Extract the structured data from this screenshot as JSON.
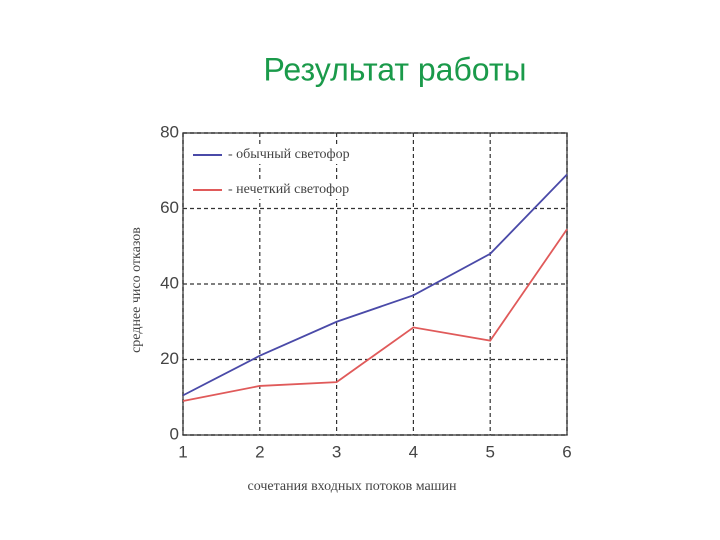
{
  "chart_data": {
    "type": "line",
    "title": "Результат работы",
    "x_label": "сочетания входных потоков машин",
    "y_label": "среднее чисо отказов",
    "x": [
      1,
      2,
      3,
      4,
      5,
      6
    ],
    "series": [
      {
        "name": "- обычный светофор",
        "color": "#4a4aa8",
        "values": [
          10.5,
          21,
          30,
          37,
          48,
          69
        ]
      },
      {
        "name": "- нечеткий светофор",
        "color": "#e05a5a",
        "values": [
          9,
          13,
          14,
          28.5,
          25,
          54.5
        ]
      }
    ],
    "xlim": [
      1,
      6
    ],
    "xticks": [
      1,
      2,
      3,
      4,
      5,
      6
    ],
    "ylim": [
      0,
      80
    ],
    "yticks": [
      0,
      20,
      40,
      60,
      80
    ],
    "grid": true,
    "legend": "upper left"
  }
}
